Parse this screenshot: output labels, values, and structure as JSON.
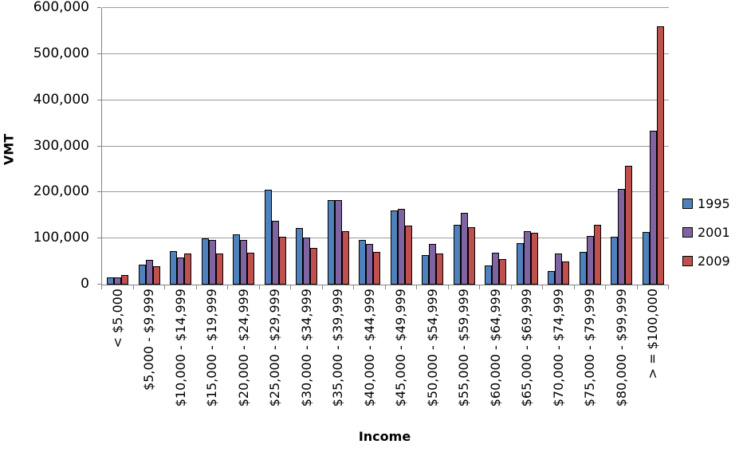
{
  "chart_data": {
    "type": "bar",
    "title": "",
    "xlabel": "Income",
    "ylabel": "VMT",
    "ylim": [
      0,
      600000
    ],
    "y_tick_step": 100000,
    "y_tick_labels": [
      "0",
      "100,000",
      "200,000",
      "300,000",
      "400,000",
      "500,000",
      "600,000"
    ],
    "grid": true,
    "legend_position": "right",
    "categories": [
      "< $5,000",
      "$5,000 - $9,999",
      "$10,000 - $14,999",
      "$15,000 - $19,999",
      "$20,000 - $24,999",
      "$25,000 - $29,999",
      "$30,000 - $34,999",
      "$35,000 - $39,999",
      "$40,000 - $44,999",
      "$45,000 - $49,999",
      "$50,000 - $54,999",
      "$55,000 - $59,999",
      "$60,000 - $64,999",
      "$65,000 - $69,999",
      "$70,000 - $74,999",
      "$75,000 - $79,999",
      "$80,000 - $99,999",
      "> = $100,000"
    ],
    "series": [
      {
        "name": "1995",
        "color": "#4F81BD",
        "values": [
          16000,
          43000,
          73000,
          100000,
          109000,
          205000,
          122000,
          183000,
          97000,
          160000,
          64000,
          129000,
          42000,
          90000,
          29000,
          71000,
          104000,
          114000
        ]
      },
      {
        "name": "2001",
        "color": "#8064A2",
        "values": [
          16000,
          54000,
          59000,
          96000,
          96000,
          138000,
          102000,
          183000,
          88000,
          165000,
          88000,
          156000,
          69000,
          116000,
          67000,
          105000,
          207000,
          333000
        ]
      },
      {
        "name": "2009",
        "color": "#C0504D",
        "values": [
          20000,
          40000,
          67000,
          67000,
          69000,
          103000,
          80000,
          116000,
          71000,
          128000,
          67000,
          124000,
          55000,
          112000,
          51000,
          130000,
          258000,
          560000
        ]
      }
    ]
  },
  "colors": {
    "gridline": "#9a9a9a",
    "axis": "#848484",
    "text": "#000000"
  }
}
